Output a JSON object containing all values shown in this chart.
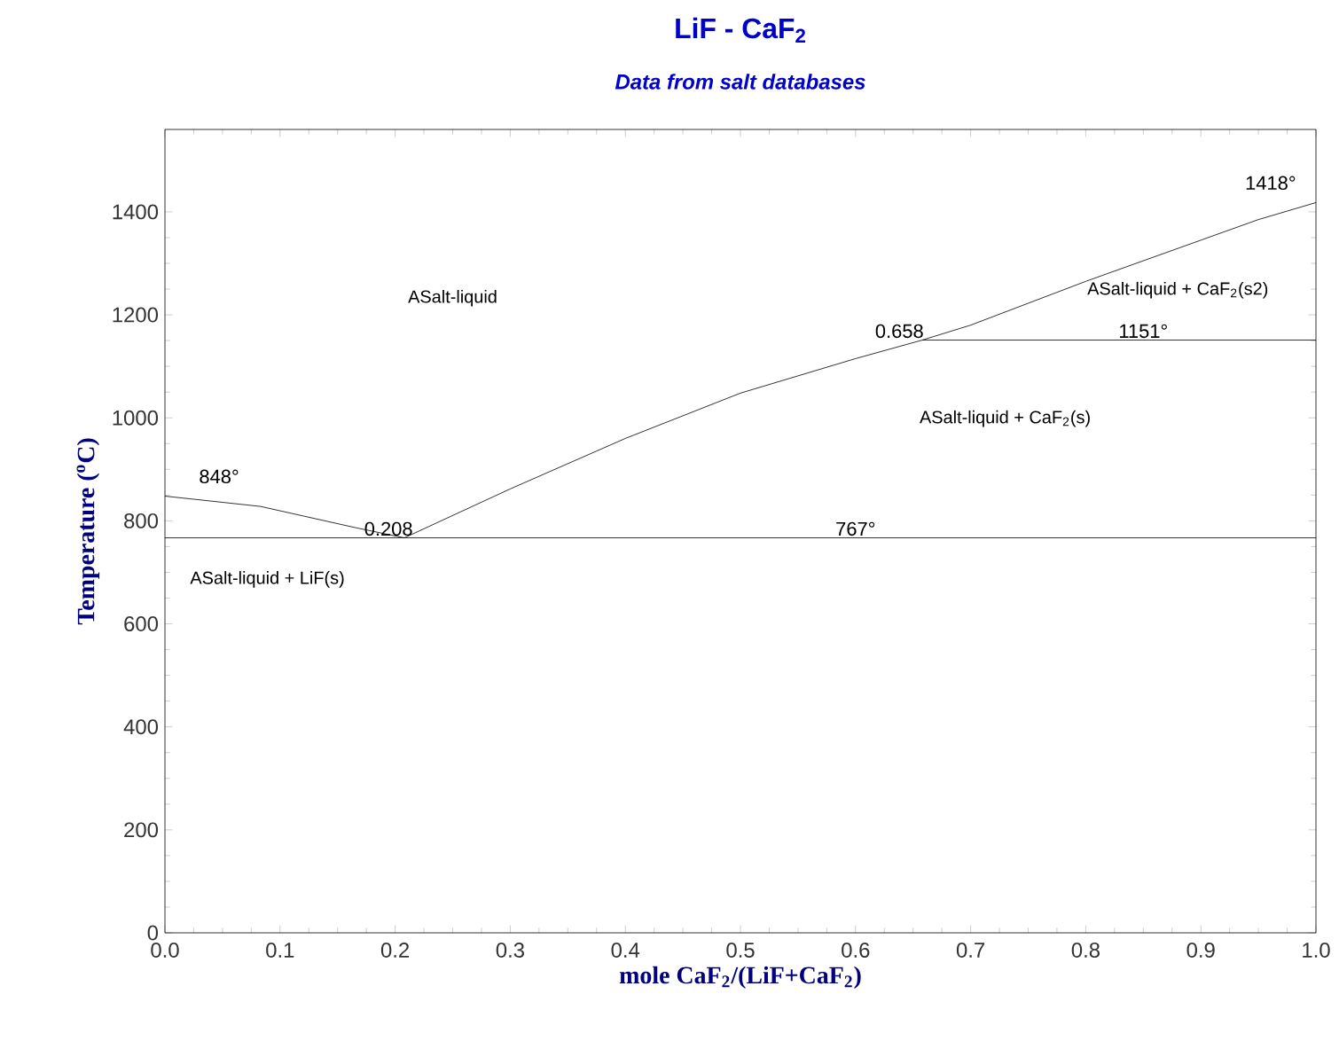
{
  "chart_data": {
    "type": "line",
    "title": "LiF - CaF$_{2}$",
    "subtitle": "Data from salt databases",
    "xlabel": "mole CaF$_{2}$/(LiF+CaF$_{2}$)",
    "ylabel": "Temperature ($^{o}$C)",
    "xlim": [
      0,
      1
    ],
    "ylim": [
      0,
      1560
    ],
    "xticks": [
      {
        "value": 0,
        "label": "0.0"
      },
      0.1,
      0.2,
      0.3,
      0.4,
      0.5,
      0.6,
      0.7,
      0.8,
      0.9,
      {
        "value": 1,
        "label": "1.0"
      }
    ],
    "yticks": [
      0,
      200,
      400,
      600,
      800,
      1000,
      1200,
      1400
    ],
    "grid": false,
    "marker": "none",
    "line_style": "solid",
    "series": [
      {
        "color": "#000000",
        "x": [
          0,
          0.083,
          0.165,
          0.208
        ],
        "values": [
          848,
          828,
          787,
          767
        ]
      },
      {
        "color": "#000000",
        "x": [
          0.208,
          0.3,
          0.4,
          0.5,
          0.6,
          0.658,
          0.7,
          0.8,
          0.9,
          0.95,
          1.0
        ],
        "values": [
          767,
          862,
          960,
          1048,
          1115,
          1151,
          1180,
          1265,
          1345,
          1385,
          1418
        ]
      },
      {
        "color": "#000000",
        "x": [
          0,
          1
        ],
        "values": [
          767,
          767
        ]
      },
      {
        "color": "#000000",
        "x": [
          0.658,
          1
        ],
        "values": [
          1151,
          1151
        ]
      }
    ],
    "annotations": [
      "ASalt-liquid",
      "ASalt-liquid + CaF$_{2}$(s2)",
      "ASalt-liquid + CaF$_{2}$(s)",
      "ASalt-liquid + LiF(s)",
      {
        "text": "848°",
        "x": 0,
        "y": 848
      },
      {
        "text": "0.208",
        "x": 0.208,
        "y": 767
      },
      {
        "text": "767°",
        "x": 0.6,
        "y": 767
      },
      {
        "text": "0.658",
        "x": 0.658,
        "y": 1151
      },
      {
        "text": "1151°",
        "x": 0.85,
        "y": 1151
      },
      {
        "text": "1418°",
        "x": 1.0,
        "y": 1418
      }
    ]
  }
}
